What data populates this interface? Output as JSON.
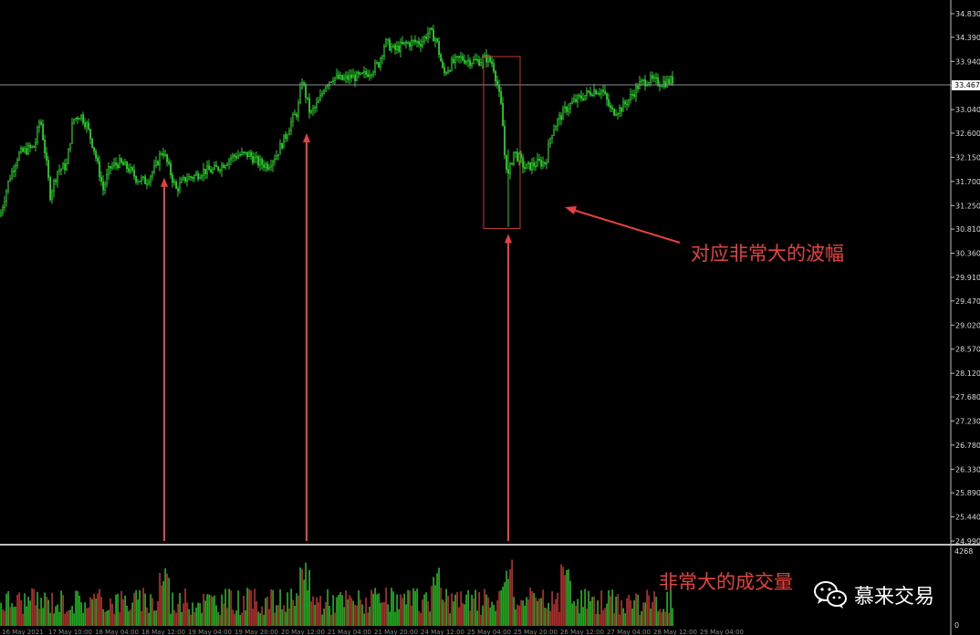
{
  "chart_data": {
    "type": "candlestick",
    "ylim": [
      24.99,
      34.83
    ],
    "price_ticks": [
      "34.830",
      "34.390",
      "33.940",
      "33.490",
      "33.040",
      "32.600",
      "32.150",
      "31.700",
      "31.250",
      "30.810",
      "30.360",
      "29.910",
      "29.470",
      "29.020",
      "28.570",
      "28.120",
      "27.680",
      "27.230",
      "26.780",
      "26.330",
      "25.890",
      "25.440",
      "24.990"
    ],
    "current_price": "33.467",
    "close_path": [
      [
        0,
        31.05
      ],
      [
        10,
        31.75
      ],
      [
        20,
        32.2
      ],
      [
        30,
        32.3
      ],
      [
        38,
        32.35
      ],
      [
        44,
        32.9
      ],
      [
        50,
        32.15
      ],
      [
        55,
        31.45
      ],
      [
        63,
        31.9
      ],
      [
        73,
        32.0
      ],
      [
        80,
        32.85
      ],
      [
        88,
        32.95
      ],
      [
        95,
        32.75
      ],
      [
        103,
        32.3
      ],
      [
        113,
        31.55
      ],
      [
        120,
        31.95
      ],
      [
        130,
        32.05
      ],
      [
        140,
        31.95
      ],
      [
        150,
        31.75
      ],
      [
        160,
        31.7
      ],
      [
        170,
        31.95
      ],
      [
        178,
        32.3
      ],
      [
        185,
        31.95
      ],
      [
        193,
        31.55
      ],
      [
        203,
        31.75
      ],
      [
        213,
        31.8
      ],
      [
        223,
        31.9
      ],
      [
        233,
        31.9
      ],
      [
        243,
        32.0
      ],
      [
        253,
        32.15
      ],
      [
        263,
        32.2
      ],
      [
        273,
        32.2
      ],
      [
        283,
        32.05
      ],
      [
        293,
        32.0
      ],
      [
        303,
        32.2
      ],
      [
        313,
        32.55
      ],
      [
        320,
        32.85
      ],
      [
        326,
        33.0
      ],
      [
        331,
        33.6
      ],
      [
        340,
        32.95
      ],
      [
        350,
        33.2
      ],
      [
        356,
        33.5
      ],
      [
        365,
        33.65
      ],
      [
        375,
        33.6
      ],
      [
        385,
        33.65
      ],
      [
        395,
        33.65
      ],
      [
        405,
        33.75
      ],
      [
        415,
        33.9
      ],
      [
        422,
        34.3
      ],
      [
        432,
        34.15
      ],
      [
        442,
        34.25
      ],
      [
        452,
        34.3
      ],
      [
        462,
        34.3
      ],
      [
        470,
        34.5
      ],
      [
        478,
        34.35
      ],
      [
        486,
        33.7
      ],
      [
        495,
        33.9
      ],
      [
        505,
        34.0
      ],
      [
        515,
        33.95
      ],
      [
        525,
        33.95
      ],
      [
        533,
        34.0
      ],
      [
        540,
        33.9
      ],
      [
        545,
        33.5
      ],
      [
        550,
        33.0
      ],
      [
        553,
        32.2
      ],
      [
        557,
        31.8
      ],
      [
        563,
        32.25
      ],
      [
        570,
        32.1
      ],
      [
        575,
        31.95
      ],
      [
        583,
        32.0
      ],
      [
        590,
        32.05
      ],
      [
        598,
        32.05
      ],
      [
        604,
        32.6
      ],
      [
        610,
        32.8
      ],
      [
        620,
        33.05
      ],
      [
        630,
        33.2
      ],
      [
        640,
        33.3
      ],
      [
        650,
        33.4
      ],
      [
        660,
        33.4
      ],
      [
        670,
        33.0
      ],
      [
        680,
        33.05
      ],
      [
        690,
        33.25
      ],
      [
        700,
        33.5
      ],
      [
        710,
        33.6
      ],
      [
        720,
        33.55
      ],
      [
        730,
        33.55
      ],
      [
        738,
        33.6
      ]
    ],
    "highlight_box": {
      "price_high": 34.03,
      "price_low": 30.82
    },
    "arrow_price_targets": [
      31.77,
      32.6,
      30.72
    ],
    "volume_scale_max": "4268",
    "volume_scale_min": "0",
    "time_labels": [
      "16 May 2021",
      "17 May 10:00",
      "18 May 04:00",
      "18 May 12:00",
      "19 May 04:00",
      "19 May 20:00",
      "20 May 12:00",
      "21 May 04:00",
      "21 May 20:00",
      "24 May 12:00",
      "25 May 04:00",
      "25 May 20:00",
      "26 May 12:00",
      "27 May 04:00",
      "28 May 12:00",
      "29 May 04:00"
    ]
  },
  "annotations": {
    "amplitude": "对应非常大的波幅",
    "volume": "非常大的成交量"
  },
  "watermark": {
    "text": "慕来交易",
    "icon": "wechat-icon"
  },
  "colors": {
    "bull": "#2bd02b",
    "bear": "#d23a3a",
    "annotation": "#e8413d",
    "axis": "#d8d8d8"
  }
}
